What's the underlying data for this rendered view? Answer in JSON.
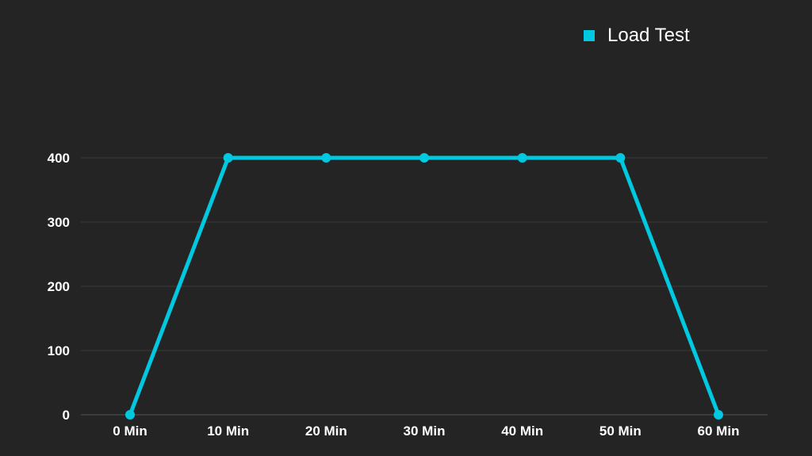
{
  "chart_data": {
    "type": "line",
    "categories": [
      "0 Min",
      "10 Min",
      "20 Min",
      "30 Min",
      "40 Min",
      "50 Min",
      "60 Min"
    ],
    "series": [
      {
        "name": "Load Test",
        "values": [
          0,
          400,
          400,
          400,
          400,
          400,
          0
        ],
        "color": "#00c8e0"
      }
    ],
    "title": "",
    "xlabel": "",
    "ylabel": "",
    "ylim": [
      0,
      400
    ],
    "yticks": [
      0,
      100,
      200,
      300,
      400
    ],
    "grid": true,
    "legend_position": "top-right"
  },
  "colors": {
    "background": "#242424",
    "grid": "#3a3a3a",
    "axis": "#555555",
    "text": "#ffffff",
    "accent": "#00c8e0"
  }
}
